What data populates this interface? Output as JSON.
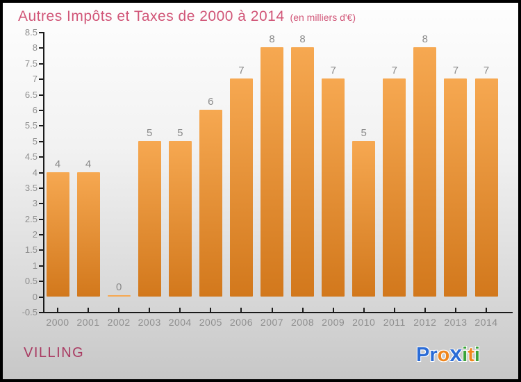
{
  "title": {
    "main": "Autres Impôts et Taxes de 2000 à 2014",
    "unit": "(en milliers d'€)"
  },
  "chart_data": {
    "type": "bar",
    "title": "Autres Impôts et Taxes de 2000 à 2014",
    "subtitle": "(en milliers d'€)",
    "categories": [
      "2000",
      "2001",
      "2002",
      "2003",
      "2004",
      "2005",
      "2006",
      "2007",
      "2008",
      "2009",
      "2010",
      "2011",
      "2012",
      "2013",
      "2014"
    ],
    "values": [
      4,
      4,
      0,
      5,
      5,
      6,
      7,
      8,
      8,
      7,
      5,
      7,
      8,
      7,
      7
    ],
    "xlabel": "",
    "ylabel": "",
    "ylim": [
      -0.5,
      8.5
    ],
    "ytick_step": 0.5,
    "grid": false,
    "legend": false,
    "value_labels_shown": true
  },
  "footer": {
    "commune": "VILLING",
    "logo_letters": [
      {
        "ch": "P",
        "color": "#2b6cd6"
      },
      {
        "ch": "r",
        "color": "#2b6cd6"
      },
      {
        "ch": "o",
        "color": "#f0861c"
      },
      {
        "ch": "x",
        "color": "#2b6cd6"
      },
      {
        "ch": "i",
        "color": "#3ba33a"
      },
      {
        "ch": "t",
        "color": "#f0861c"
      },
      {
        "ch": "i",
        "color": "#3ba33a"
      }
    ]
  },
  "colors": {
    "title": "#d15678",
    "axis": "#1a1a1a",
    "tick_label": "#8e8e8e",
    "bar_value_label": "#8a8a8a",
    "commune": "#a93b62",
    "bar_gradient_top": "#f6a851",
    "bar_gradient_bottom": "#d2781c",
    "background_top": "#fefefe",
    "background_bottom": "#c7c7c7"
  }
}
